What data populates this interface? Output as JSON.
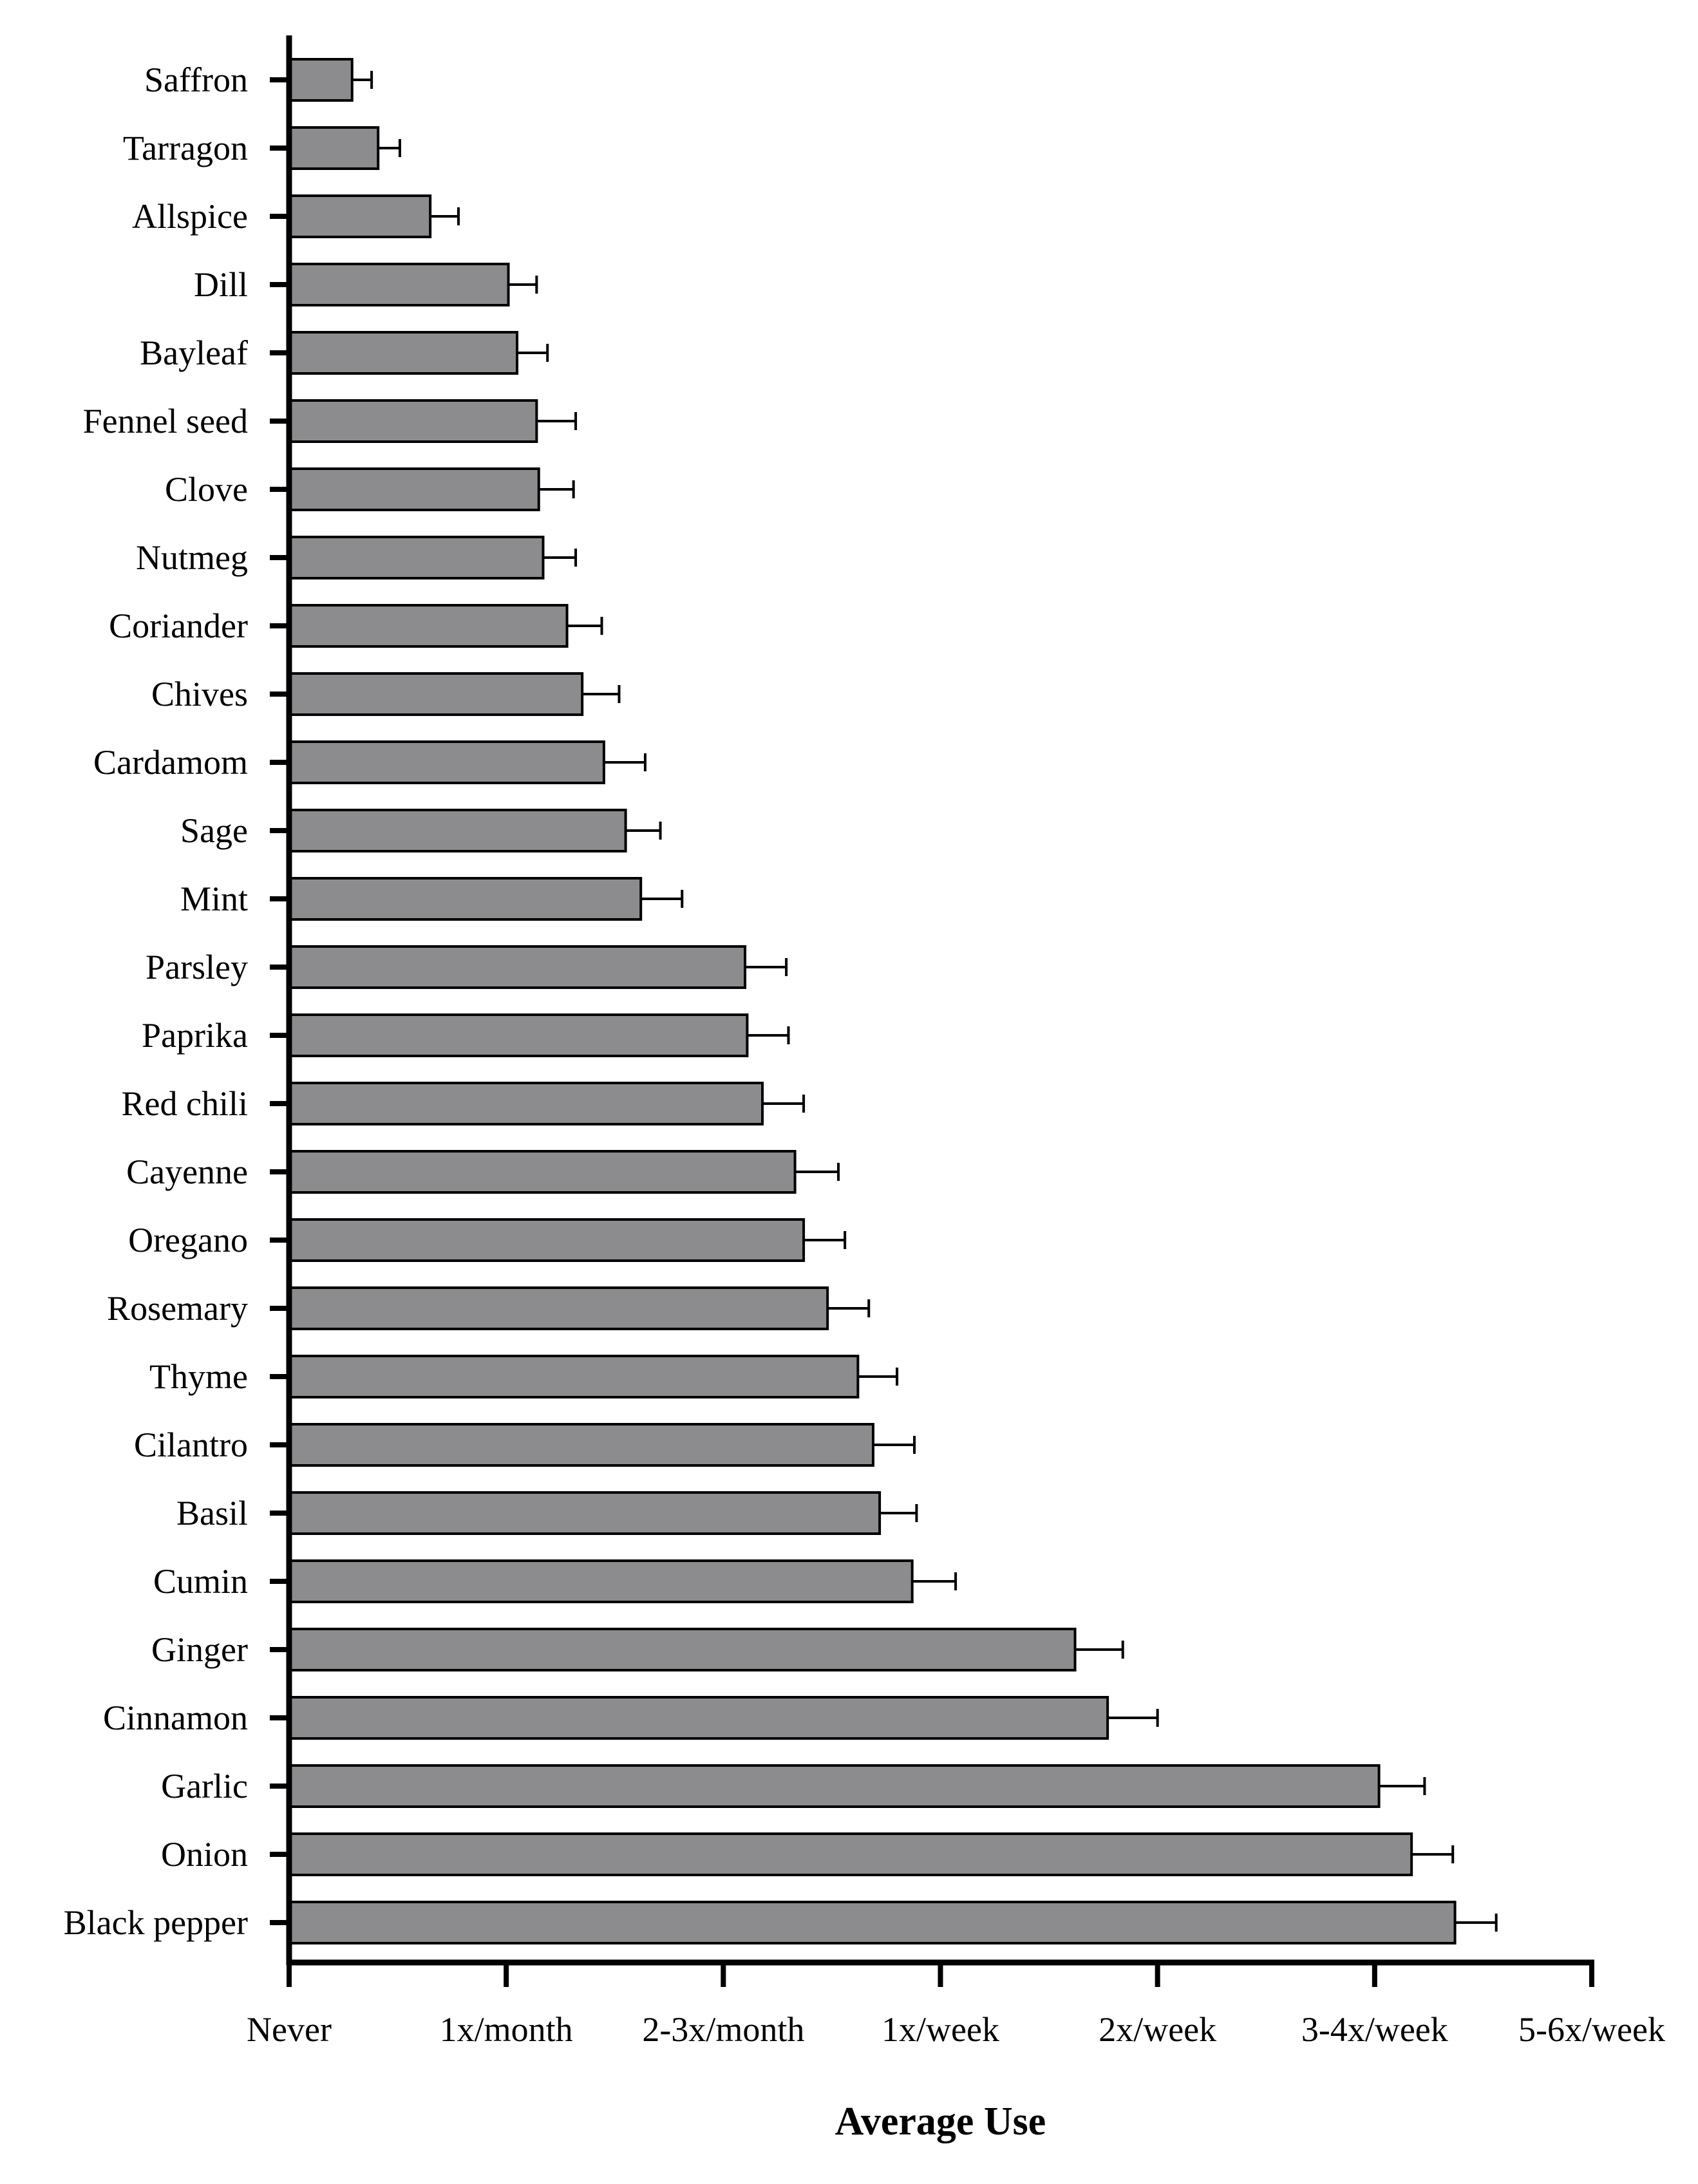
{
  "chart_data": {
    "type": "bar",
    "orientation": "horizontal",
    "title": "",
    "xlabel": "Average Use",
    "ylabel": "",
    "x_tick_labels": [
      "Never",
      "1x/month",
      "2-3x/month",
      "1x/week",
      "2x/week",
      "3-4x/week",
      "5-6x/week"
    ],
    "xlim": [
      0,
      6
    ],
    "grid": false,
    "categories": [
      "Saffron",
      "Tarragon",
      "Allspice",
      "Dill",
      "Bayleaf",
      "Fennel seed",
      "Clove",
      "Nutmeg",
      "Coriander",
      "Chives",
      "Cardamom",
      "Sage",
      "Mint",
      "Parsley",
      "Paprika",
      "Red chili",
      "Cayenne",
      "Oregano",
      "Rosemary",
      "Thyme",
      "Cilantro",
      "Basil",
      "Cumin",
      "Ginger",
      "Cinnamon",
      "Garlic",
      "Onion",
      "Black pepper"
    ],
    "values": [
      0.29,
      0.41,
      0.65,
      1.01,
      1.05,
      1.14,
      1.15,
      1.17,
      1.28,
      1.35,
      1.45,
      1.55,
      1.62,
      2.1,
      2.11,
      2.18,
      2.33,
      2.37,
      2.48,
      2.62,
      2.69,
      2.72,
      2.87,
      3.62,
      3.77,
      5.02,
      5.17,
      5.37
    ],
    "errors": [
      0.09,
      0.1,
      0.13,
      0.13,
      0.14,
      0.18,
      0.16,
      0.15,
      0.16,
      0.17,
      0.19,
      0.16,
      0.19,
      0.19,
      0.19,
      0.19,
      0.2,
      0.19,
      0.19,
      0.18,
      0.19,
      0.17,
      0.2,
      0.22,
      0.23,
      0.21,
      0.19,
      0.19
    ],
    "bar_color": "#8c8b8e",
    "bar_edge_color": "#000000"
  }
}
